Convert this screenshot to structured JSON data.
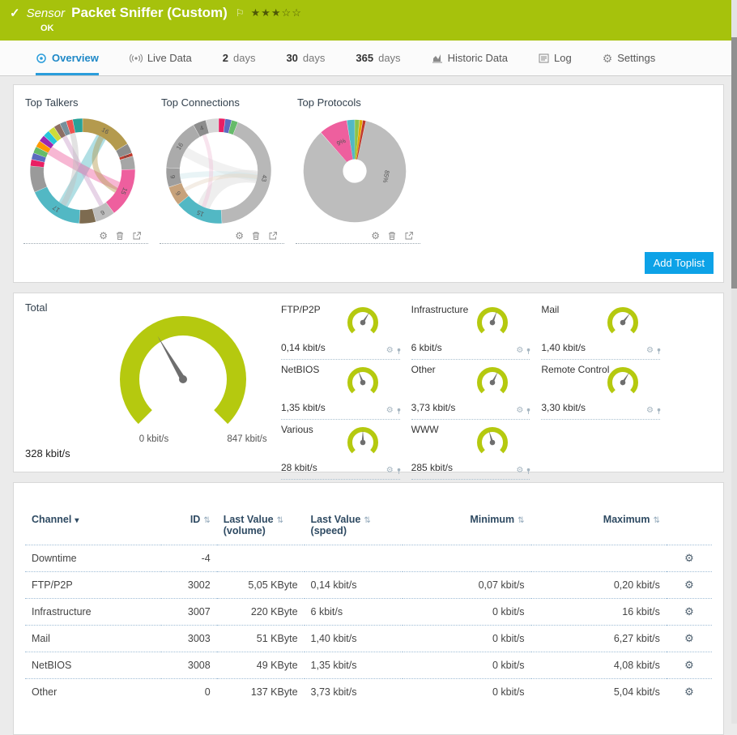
{
  "colors": {
    "status_ok_green": "#a6c20c",
    "gauge_green": "#b5c90f",
    "accent_blue": "#0da2e7",
    "tab_active_blue": "#1e88c7"
  },
  "header": {
    "check_glyph": "✓",
    "sensor_type_label": "Sensor",
    "title": "Packet Sniffer (Custom)",
    "flag_glyph": "⚐",
    "rating_filled": "★★★",
    "rating_empty": "☆☆",
    "status": "OK"
  },
  "tabs": [
    {
      "label": "Overview"
    },
    {
      "label": "Live Data"
    },
    {
      "num": "2",
      "label": "days"
    },
    {
      "num": "30",
      "label": "days"
    },
    {
      "num": "365",
      "label": "days"
    },
    {
      "label": "Historic Data"
    },
    {
      "label": "Log"
    },
    {
      "label": "Settings"
    }
  ],
  "toplists": {
    "cards": [
      {
        "title": "Top Talkers"
      },
      {
        "title": "Top Connections"
      },
      {
        "title": "Top Protocols"
      }
    ],
    "add_button_label": "Add Toplist"
  },
  "charts": {
    "top_talkers": {
      "type": "chord-donut",
      "segments": [
        {
          "v": 16,
          "c": "#b49a4e",
          "label": "16"
        },
        {
          "v": 3,
          "c": "#8d8d8d"
        },
        {
          "v": 1,
          "c": "#c0392b",
          "label": "1"
        },
        {
          "v": 4,
          "c": "#a6a6a6"
        },
        {
          "v": 15,
          "c": "#ee5f9e",
          "label": "15"
        },
        {
          "v": 6,
          "c": "#bdbdbd",
          "label": "6"
        },
        {
          "v": 5,
          "c": "#7d6b50"
        },
        {
          "v": 17,
          "c": "#52b8c4",
          "label": "17"
        },
        {
          "v": 8,
          "c": "#9a9a9a"
        },
        {
          "v": 2,
          "c": "#e91e63"
        },
        {
          "v": 2,
          "c": "#5c6bc0"
        },
        {
          "v": 2,
          "c": "#66bb6a"
        },
        {
          "v": 2,
          "c": "#ff9800"
        },
        {
          "v": 2,
          "c": "#9c27b0"
        },
        {
          "v": 2,
          "c": "#26c6da"
        },
        {
          "v": 2,
          "c": "#cddc39"
        },
        {
          "v": 2,
          "c": "#8d6e63"
        },
        {
          "v": 2,
          "c": "#78909c"
        },
        {
          "v": 2,
          "c": "#ef5350"
        },
        {
          "v": 3,
          "c": "#2aa198"
        }
      ],
      "chords": [
        {
          "a": 210,
          "b": 29,
          "w": 13,
          "c": "#52b8c4"
        },
        {
          "a": 113,
          "b": 302,
          "w": 11,
          "c": "#ee5f9e"
        },
        {
          "a": 29,
          "b": 120,
          "w": 7,
          "c": "#b49a4e"
        },
        {
          "a": 151,
          "b": 332,
          "w": 6,
          "c": "#c9a0c9"
        },
        {
          "a": 210,
          "b": 345,
          "w": 7,
          "c": "#bfbfbf"
        }
      ]
    },
    "top_connections": {
      "type": "chord-donut",
      "segments": [
        {
          "v": 2,
          "c": "#e91e63"
        },
        {
          "v": 2,
          "c": "#5c6bc0"
        },
        {
          "v": 2,
          "c": "#66bb6a"
        },
        {
          "v": 43,
          "c": "#b8b8b8",
          "label": "43"
        },
        {
          "v": 15,
          "c": "#52b8c4",
          "label": "15"
        },
        {
          "v": 6,
          "c": "#c7a27b",
          "label": "6"
        },
        {
          "v": 6,
          "c": "#9e9e9e",
          "label": "6"
        },
        {
          "v": 16,
          "c": "#ababab",
          "label": "16"
        },
        {
          "v": 4,
          "c": "#8d8d8d",
          "label": "4"
        },
        {
          "v": 4,
          "c": "#d6d6d6"
        }
      ],
      "chords": [
        {
          "a": 99,
          "b": 203,
          "w": 16,
          "c": "#d9d9d9"
        },
        {
          "a": 99,
          "b": 300,
          "w": 12,
          "c": "#e0e0e0"
        },
        {
          "a": 99,
          "b": 262,
          "w": 7,
          "c": "#cfe6ea"
        },
        {
          "a": 203,
          "b": 338,
          "w": 5,
          "c": "#f0c3da"
        },
        {
          "a": 99,
          "b": 241,
          "w": 5,
          "c": "#e7d7c5"
        }
      ]
    },
    "top_protocols": {
      "type": "donut",
      "segments": [
        {
          "v": 1.5,
          "c": "#8bc34a"
        },
        {
          "v": 1.0,
          "c": "#e0a800"
        },
        {
          "v": 1.0,
          "c": "#c0392b"
        },
        {
          "v": 85,
          "c": "#bdbdbd",
          "label": "85%",
          "la": 100
        },
        {
          "v": 9,
          "c": "#ee5f9e",
          "label": "9%"
        },
        {
          "v": 2.5,
          "c": "#52b8c4"
        }
      ],
      "chords": []
    }
  },
  "gauge_panel": {
    "total": {
      "label": "Total",
      "value": "328 kbit/s",
      "min_label": "0 kbit/s",
      "max_label": "847 kbit/s",
      "fraction": 0.387
    },
    "channels": [
      {
        "name": "FTP/P2P",
        "value": "0,14 kbit/s",
        "fraction": 0.62
      },
      {
        "name": "Infrastructure",
        "value": "6 kbit/s",
        "fraction": 0.58
      },
      {
        "name": "Mail",
        "value": "1,40 kbit/s",
        "fraction": 0.64
      },
      {
        "name": "NetBIOS",
        "value": "1,35 kbit/s",
        "fraction": 0.42
      },
      {
        "name": "Other",
        "value": "3,73 kbit/s",
        "fraction": 0.6
      },
      {
        "name": "Remote Control",
        "value": "3,30 kbit/s",
        "fraction": 0.62
      },
      {
        "name": "Various",
        "value": "28 kbit/s",
        "fraction": 0.5
      },
      {
        "name": "WWW",
        "value": "285 kbit/s",
        "fraction": 0.44
      }
    ]
  },
  "table": {
    "sort_glyph": "⇅",
    "sorted_glyph": "▾",
    "columns": [
      {
        "l1": "Channel"
      },
      {
        "l1": "ID"
      },
      {
        "l1": "Last Value",
        "l2": "(volume)"
      },
      {
        "l1": "Last Value",
        "l2": "(speed)"
      },
      {
        "l1": "Minimum"
      },
      {
        "l1": "Maximum"
      }
    ],
    "rows": [
      {
        "channel": "Downtime",
        "id": "-4",
        "volume": "",
        "speed": "",
        "min": "",
        "max": ""
      },
      {
        "channel": "FTP/P2P",
        "id": "3002",
        "volume": "5,05 KByte",
        "speed": "0,14 kbit/s",
        "min": "0,07 kbit/s",
        "max": "0,20 kbit/s"
      },
      {
        "channel": "Infrastructure",
        "id": "3007",
        "volume": "220 KByte",
        "speed": "6 kbit/s",
        "min": "0 kbit/s",
        "max": "16 kbit/s"
      },
      {
        "channel": "Mail",
        "id": "3003",
        "volume": "51 KByte",
        "speed": "1,40 kbit/s",
        "min": "0 kbit/s",
        "max": "6,27 kbit/s"
      },
      {
        "channel": "NetBIOS",
        "id": "3008",
        "volume": "49 KByte",
        "speed": "1,35 kbit/s",
        "min": "0 kbit/s",
        "max": "4,08 kbit/s"
      },
      {
        "channel": "Other",
        "id": "0",
        "volume": "137 KByte",
        "speed": "3,73 kbit/s",
        "min": "0 kbit/s",
        "max": "5,04 kbit/s"
      }
    ]
  }
}
